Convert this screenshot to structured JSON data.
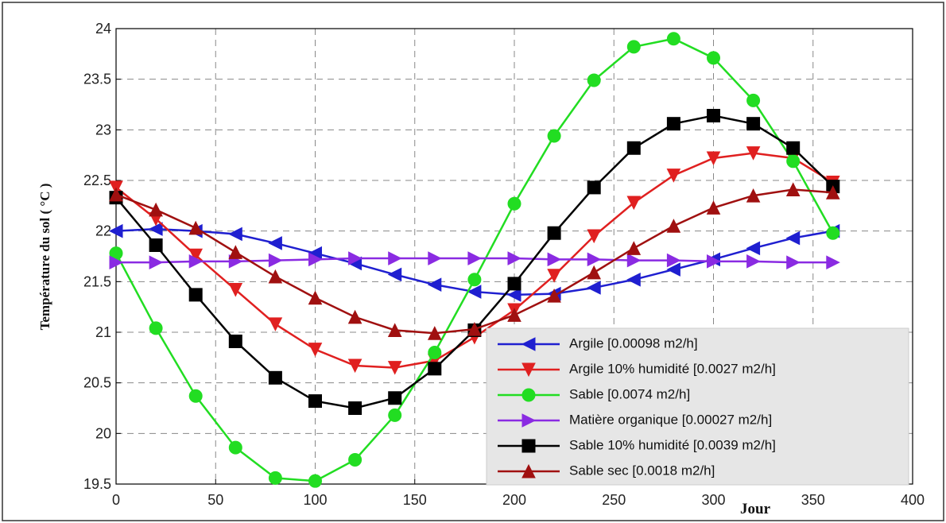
{
  "chart_data": {
    "type": "line",
    "ylabel": "Température du sol ( °C )",
    "xlabel": "Jour",
    "x": [
      0,
      20,
      40,
      60,
      80,
      100,
      120,
      140,
      160,
      180,
      200,
      220,
      240,
      260,
      280,
      300,
      320,
      340,
      360
    ],
    "series": [
      {
        "name": "Argile [0.00098 m2/h]",
        "color": "#1f1fd0",
        "marker": "triangle-left",
        "values": [
          22.0,
          22.02,
          22.0,
          21.97,
          21.88,
          21.78,
          21.68,
          21.57,
          21.47,
          21.4,
          21.37,
          21.38,
          21.44,
          21.52,
          21.62,
          21.72,
          21.83,
          21.93,
          22.0
        ]
      },
      {
        "name": "Argile 10% humidité [0.0027 m2/h]",
        "color": "#e02020",
        "marker": "triangle-down",
        "values": [
          22.43,
          22.12,
          21.76,
          21.42,
          21.08,
          20.83,
          20.67,
          20.65,
          20.72,
          20.95,
          21.22,
          21.56,
          21.95,
          22.28,
          22.55,
          22.72,
          22.77,
          22.72,
          22.48
        ]
      },
      {
        "name": "Sable [0.0074 m2/h]",
        "color": "#22dd22",
        "marker": "circle",
        "values": [
          21.78,
          21.04,
          20.37,
          19.86,
          19.56,
          19.53,
          19.74,
          20.18,
          20.8,
          21.52,
          22.27,
          22.94,
          23.49,
          23.82,
          23.9,
          23.71,
          23.29,
          22.69,
          21.98
        ]
      },
      {
        "name": "Matière organique [0.00027 m2/h]",
        "color": "#8a2be2",
        "marker": "triangle-right",
        "values": [
          21.69,
          21.69,
          21.7,
          21.7,
          21.71,
          21.72,
          21.73,
          21.73,
          21.73,
          21.73,
          21.73,
          21.72,
          21.72,
          21.71,
          21.71,
          21.7,
          21.7,
          21.69,
          21.69
        ]
      },
      {
        "name": "Sable 10% humidité [0.0039 m2/h]",
        "color": "#000000",
        "marker": "square",
        "values": [
          22.33,
          21.86,
          21.37,
          20.91,
          20.55,
          20.32,
          20.25,
          20.35,
          20.64,
          21.02,
          21.48,
          21.98,
          22.43,
          22.82,
          23.06,
          23.14,
          23.06,
          22.82,
          22.44
        ]
      },
      {
        "name": "Sable sec [0.0018 m2/h]",
        "color": "#a01010",
        "marker": "triangle-up",
        "values": [
          22.36,
          22.21,
          22.03,
          21.79,
          21.55,
          21.34,
          21.15,
          21.02,
          20.99,
          21.03,
          21.17,
          21.36,
          21.59,
          21.83,
          22.05,
          22.23,
          22.35,
          22.41,
          22.38
        ]
      }
    ],
    "xlim": [
      0,
      400
    ],
    "xticks": [
      0,
      50,
      100,
      150,
      200,
      250,
      300,
      350,
      400
    ],
    "ylim": [
      19.5,
      24
    ],
    "yticks": [
      19.5,
      20,
      20.5,
      21,
      21.5,
      22,
      22.5,
      23,
      23.5,
      24
    ],
    "grid": true,
    "legend": "lower right"
  }
}
